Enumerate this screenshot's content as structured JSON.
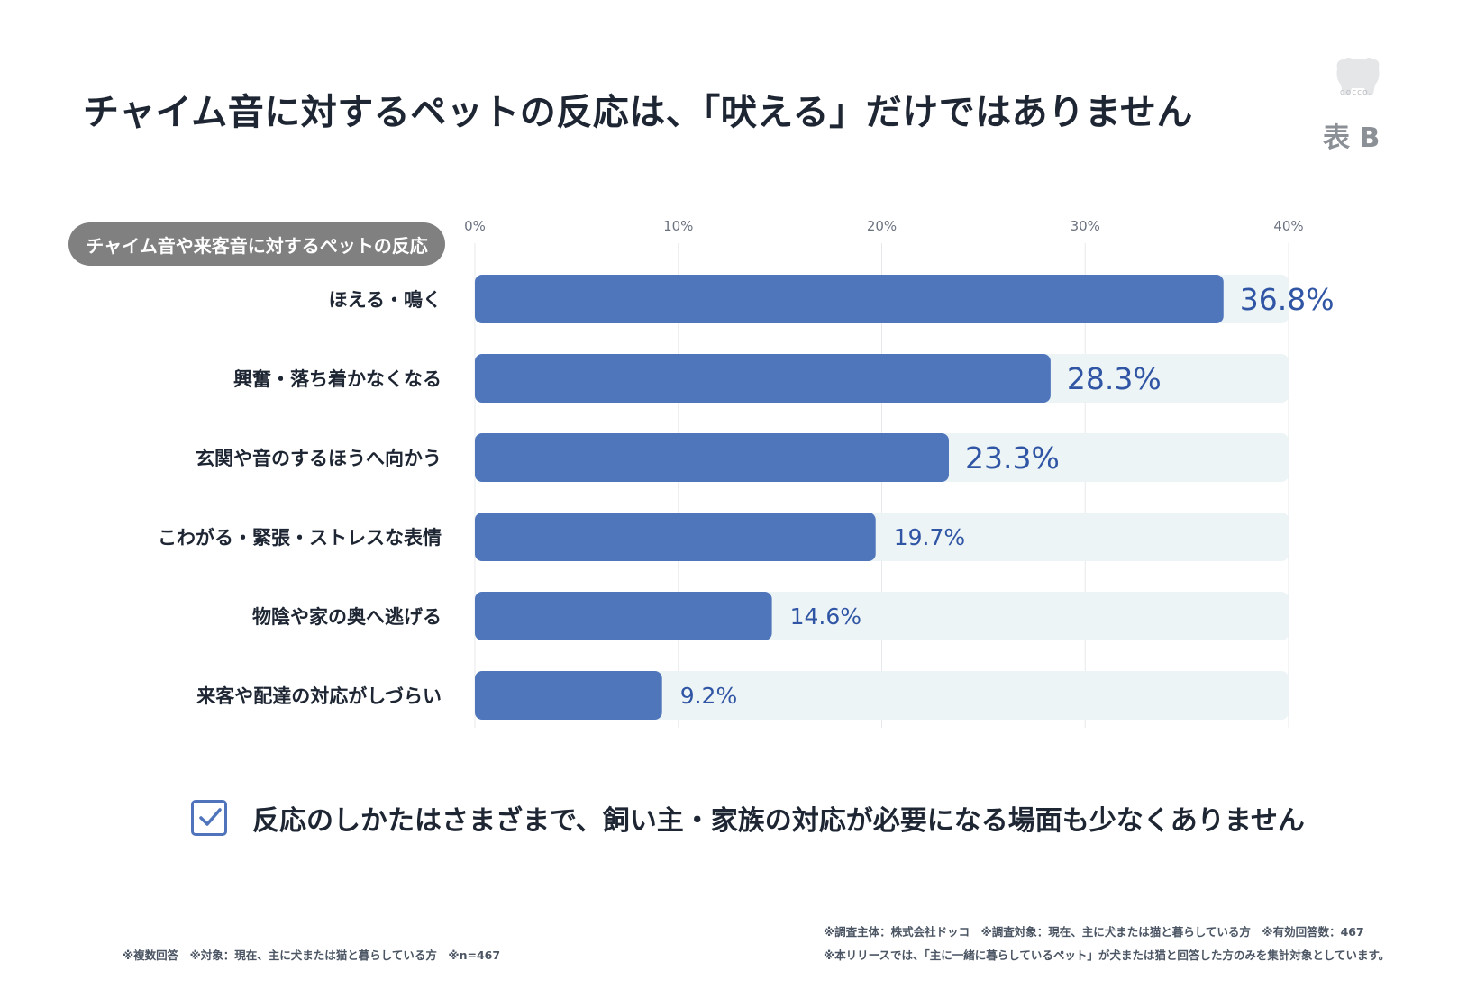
{
  "title": "チャイム音に対するペットの反応は、「吠える」だけではありません",
  "logo_text": "docco.",
  "table_label": "表 B",
  "category_header": "チャイム音や来客音に対するペットの反応",
  "summary": "反応のしかたはさまざまで、飼い主・家族の対応が必要になる場面も少なくありません",
  "notes": {
    "left": "※複数回答　※対象：現在、主に犬または猫と暮らしている方　※n=467",
    "right_line1": "※調査主体：株式会社ドッコ　※調査対象：現在、主に犬または猫と暮らしている方　※有効回答数：467",
    "right_line2": "※本リリースでは、「主に一緒に暮らしているペット」が犬または猫と回答した方のみを集計対象としています。"
  },
  "colors": {
    "bar": "#4f75bb",
    "track": "#edf4f6",
    "label_value": "#2f55a4",
    "grid": "#e6e8eb"
  },
  "chart_data": {
    "type": "bar",
    "orientation": "horizontal",
    "categories": [
      "ほえる・鳴く",
      "興奮・落ち着かなくなる",
      "玄関や音のするほうへ向かう",
      "こわがる・緊張・ストレスな表情",
      "物陰や家の奥へ逃げる",
      "来客や配達の対応がしづらい"
    ],
    "values": [
      36.8,
      28.3,
      23.3,
      19.7,
      14.6,
      9.2
    ],
    "value_labels": [
      "36.8%",
      "28.3%",
      "23.3%",
      "19.7%",
      "14.6%",
      "9.2%"
    ],
    "xlim": [
      0,
      40
    ],
    "ticks": [
      0,
      10,
      20,
      30,
      40
    ],
    "tick_labels": [
      "0%",
      "10%",
      "20%",
      "30%",
      "40%"
    ],
    "unit": "%",
    "title": "チャイム音や来客音に対するペットの反応",
    "grid": true
  }
}
